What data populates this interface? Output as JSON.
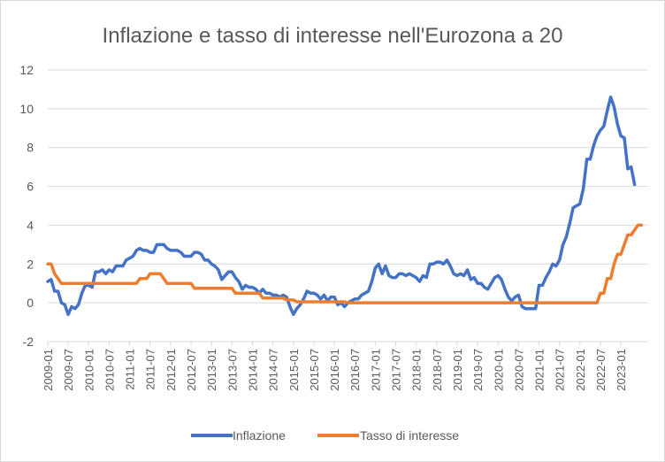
{
  "chart_data": {
    "type": "line",
    "title": "Inflazione e tasso di interesse nell'Eurozona a 20",
    "xlabel": "",
    "ylabel": "",
    "ylim": [
      -2,
      12
    ],
    "yticks": [
      -2,
      0,
      2,
      4,
      6,
      8,
      10,
      12
    ],
    "grid": true,
    "legend_position": "bottom",
    "x_tick_labels": [
      "2009-01",
      "2009-07",
      "2010-01",
      "2010-07",
      "2011-01",
      "2011-07",
      "2012-01",
      "2012-07",
      "2013-01",
      "2013-07",
      "2014-01",
      "2014-07",
      "2015-01",
      "2015-07",
      "2016-01",
      "2016-07",
      "2017-01",
      "2017-07",
      "2018-01",
      "2018-07",
      "2019-01",
      "2019-07",
      "2020-01",
      "2020-07",
      "2021-01",
      "2021-07",
      "2022-01",
      "2022-07",
      "2023-01"
    ],
    "x_start": "2009-01",
    "series": [
      {
        "name": "Inflazione",
        "color": "#4472c4",
        "values": [
          1.1,
          1.2,
          0.6,
          0.6,
          0.0,
          -0.1,
          -0.6,
          -0.2,
          -0.3,
          -0.1,
          0.5,
          0.9,
          0.9,
          0.8,
          1.6,
          1.6,
          1.7,
          1.5,
          1.7,
          1.6,
          1.9,
          1.9,
          1.9,
          2.2,
          2.3,
          2.4,
          2.7,
          2.8,
          2.7,
          2.7,
          2.6,
          2.6,
          3.0,
          3.0,
          3.0,
          2.8,
          2.7,
          2.7,
          2.7,
          2.6,
          2.4,
          2.4,
          2.4,
          2.6,
          2.6,
          2.5,
          2.2,
          2.2,
          2.0,
          1.9,
          1.7,
          1.2,
          1.4,
          1.6,
          1.6,
          1.3,
          1.1,
          0.7,
          0.9,
          0.8,
          0.8,
          0.7,
          0.5,
          0.7,
          0.5,
          0.5,
          0.4,
          0.4,
          0.3,
          0.4,
          0.3,
          -0.2,
          -0.6,
          -0.3,
          -0.1,
          0.2,
          0.6,
          0.5,
          0.5,
          0.4,
          0.2,
          0.4,
          0.1,
          0.3,
          0.3,
          -0.1,
          0.0,
          -0.2,
          0.0,
          0.1,
          0.2,
          0.2,
          0.4,
          0.5,
          0.6,
          1.1,
          1.8,
          2.0,
          1.5,
          1.9,
          1.4,
          1.3,
          1.3,
          1.5,
          1.5,
          1.4,
          1.5,
          1.4,
          1.3,
          1.1,
          1.4,
          1.3,
          2.0,
          2.0,
          2.1,
          2.1,
          2.0,
          2.2,
          1.9,
          1.5,
          1.4,
          1.5,
          1.4,
          1.7,
          1.2,
          1.3,
          1.0,
          1.0,
          0.8,
          0.7,
          1.0,
          1.3,
          1.4,
          1.2,
          0.7,
          0.3,
          0.1,
          0.3,
          0.4,
          -0.2,
          -0.3,
          -0.3,
          -0.3,
          -0.3,
          0.9,
          0.9,
          1.3,
          1.6,
          2.0,
          1.9,
          2.2,
          3.0,
          3.4,
          4.1,
          4.9,
          5.0,
          5.1,
          5.9,
          7.4,
          7.4,
          8.1,
          8.6,
          8.9,
          9.1,
          9.9,
          10.6,
          10.1,
          9.2,
          8.6,
          8.5,
          6.9,
          7.0,
          6.1
        ]
      },
      {
        "name": "Tasso di interesse",
        "color": "#ed7d31",
        "values": [
          2.0,
          2.0,
          1.5,
          1.25,
          1.0,
          1.0,
          1.0,
          1.0,
          1.0,
          1.0,
          1.0,
          1.0,
          1.0,
          1.0,
          1.0,
          1.0,
          1.0,
          1.0,
          1.0,
          1.0,
          1.0,
          1.0,
          1.0,
          1.0,
          1.0,
          1.0,
          1.0,
          1.25,
          1.25,
          1.25,
          1.5,
          1.5,
          1.5,
          1.5,
          1.25,
          1.0,
          1.0,
          1.0,
          1.0,
          1.0,
          1.0,
          1.0,
          1.0,
          0.75,
          0.75,
          0.75,
          0.75,
          0.75,
          0.75,
          0.75,
          0.75,
          0.75,
          0.75,
          0.75,
          0.75,
          0.5,
          0.5,
          0.5,
          0.5,
          0.5,
          0.5,
          0.5,
          0.5,
          0.25,
          0.25,
          0.25,
          0.25,
          0.25,
          0.25,
          0.25,
          0.15,
          0.15,
          0.15,
          0.05,
          0.05,
          0.05,
          0.05,
          0.05,
          0.05,
          0.05,
          0.05,
          0.05,
          0.05,
          0.05,
          0.05,
          0.05,
          0.05,
          0.05,
          0.0,
          0.0,
          0.0,
          0.0,
          0.0,
          0.0,
          0.0,
          0.0,
          0.0,
          0.0,
          0.0,
          0.0,
          0.0,
          0.0,
          0.0,
          0.0,
          0.0,
          0.0,
          0.0,
          0.0,
          0.0,
          0.0,
          0.0,
          0.0,
          0.0,
          0.0,
          0.0,
          0.0,
          0.0,
          0.0,
          0.0,
          0.0,
          0.0,
          0.0,
          0.0,
          0.0,
          0.0,
          0.0,
          0.0,
          0.0,
          0.0,
          0.0,
          0.0,
          0.0,
          0.0,
          0.0,
          0.0,
          0.0,
          0.0,
          0.0,
          0.0,
          0.0,
          0.0,
          0.0,
          0.0,
          0.0,
          0.0,
          0.0,
          0.0,
          0.0,
          0.0,
          0.0,
          0.0,
          0.0,
          0.0,
          0.0,
          0.0,
          0.0,
          0.0,
          0.0,
          0.0,
          0.0,
          0.0,
          0.0,
          0.5,
          0.5,
          1.25,
          1.25,
          2.0,
          2.5,
          2.5,
          3.0,
          3.5,
          3.5,
          3.75,
          4.0,
          4.0
        ]
      }
    ]
  }
}
